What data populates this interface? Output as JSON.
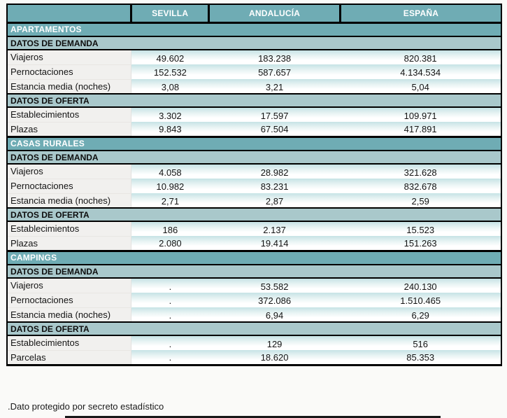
{
  "chart_data": {
    "type": "table",
    "columns": [
      "",
      "SEVILLA",
      "ANDALUCÍA",
      "ESPAÑA"
    ],
    "sections": [
      {
        "title": "APARTAMENTOS",
        "groups": [
          {
            "title": "DATOS DE DEMANDA",
            "rows": [
              {
                "label": "Viajeros",
                "values": [
                  "49.602",
                  "183.238",
                  "820.381"
                ]
              },
              {
                "label": "Pernoctaciones",
                "values": [
                  "152.532",
                  "587.657",
                  "4.134.534"
                ]
              },
              {
                "label": "Estancia media (noches)",
                "values": [
                  "3,08",
                  "3,21",
                  "5,04"
                ]
              }
            ]
          },
          {
            "title": "DATOS DE OFERTA",
            "rows": [
              {
                "label": "Establecimientos",
                "values": [
                  "3.302",
                  "17.597",
                  "109.971"
                ]
              },
              {
                "label": "Plazas",
                "values": [
                  "9.843",
                  "67.504",
                  "417.891"
                ]
              }
            ]
          }
        ]
      },
      {
        "title": "CASAS RURALES",
        "groups": [
          {
            "title": "DATOS DE DEMANDA",
            "rows": [
              {
                "label": "Viajeros",
                "values": [
                  "4.058",
                  "28.982",
                  "321.628"
                ]
              },
              {
                "label": "Pernoctaciones",
                "values": [
                  "10.982",
                  "83.231",
                  "832.678"
                ]
              },
              {
                "label": "Estancia media (noches)",
                "values": [
                  "2,71",
                  "2,87",
                  "2,59"
                ]
              }
            ]
          },
          {
            "title": "DATOS DE OFERTA",
            "rows": [
              {
                "label": "Establecimientos",
                "values": [
                  "186",
                  "2.137",
                  "15.523"
                ]
              },
              {
                "label": "Plazas",
                "values": [
                  "2.080",
                  "19.414",
                  "151.263"
                ]
              }
            ]
          }
        ]
      },
      {
        "title": "CAMPINGS",
        "groups": [
          {
            "title": "DATOS DE DEMANDA",
            "rows": [
              {
                "label": "Viajeros",
                "values": [
                  ".",
                  "53.582",
                  "240.130"
                ]
              },
              {
                "label": "Pernoctaciones",
                "values": [
                  ".",
                  "372.086",
                  "1.510.465"
                ]
              },
              {
                "label": "Estancia media (noches)",
                "values": [
                  ".",
                  "6,94",
                  "6,29"
                ]
              }
            ]
          },
          {
            "title": "DATOS DE OFERTA",
            "rows": [
              {
                "label": "Establecimientos",
                "values": [
                  ".",
                  "129",
                  "516"
                ]
              },
              {
                "label": "Parcelas",
                "values": [
                  ".",
                  "18.620",
                  "85.353"
                ]
              }
            ]
          }
        ]
      }
    ],
    "footnote": ".Dato protegido por secreto estadístico",
    "layout": {
      "grid": false,
      "legend": "none"
    }
  },
  "colors": {
    "header_teal": "#6FACB4",
    "subheader_teal": "#A9C8CB",
    "cell_gradient_top": "#C6E3E5",
    "label_bg": "#F1F0EE",
    "border": "#000000",
    "header_text": "#FFFFFF"
  }
}
